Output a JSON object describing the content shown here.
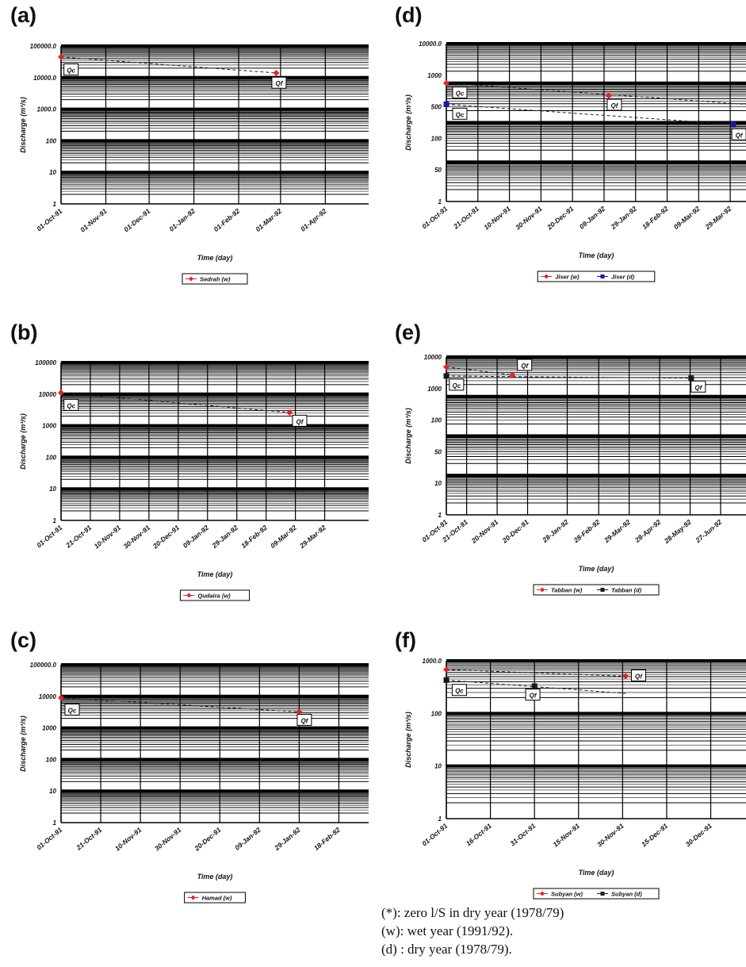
{
  "chart_data": [
    {
      "panel": "(a)",
      "type": "line",
      "scale": "log",
      "xlabel": "Time (day)",
      "ylabel": "Discharge (m³/s)",
      "ylim": [
        1,
        100000
      ],
      "ytick_labels": [
        "1",
        "10",
        "100",
        "1000.0",
        "10000.0",
        "100000.0"
      ],
      "x_dates": [
        "01-Oct-91",
        "01-Nov-91",
        "01-Dec-91",
        "01-Jan-92",
        "01-Feb-92",
        "01-Mar-92",
        "01-Apr-92"
      ],
      "x_range": [
        "01-Oct-91",
        "01-May-92"
      ],
      "series": [
        {
          "name": "Sedrah (w)",
          "color": "#e8202a",
          "marker": "diamond",
          "x": [
            "01-Oct-91",
            "27-Feb-92"
          ],
          "y": [
            45000,
            14000
          ]
        }
      ],
      "trend": [
        {
          "x": [
            "01-Oct-91",
            "27-Feb-92"
          ],
          "y": [
            45000,
            14000
          ]
        }
      ],
      "annotations": [
        {
          "text": "Qc",
          "x": "03-Oct-91",
          "y": 17000
        },
        {
          "text": "Qf",
          "x": "24-Feb-92",
          "y": 6500
        }
      ]
    },
    {
      "panel": "(b)",
      "type": "line",
      "scale": "log",
      "xlabel": "Time (day)",
      "ylabel": "Discharge (m³/s)",
      "ylim": [
        1,
        100000
      ],
      "ytick_labels": [
        "1",
        "10",
        "100",
        "1000",
        "10000",
        "100000"
      ],
      "x_dates": [
        "01-Oct-91",
        "21-Oct-91",
        "10-Nov-91",
        "30-Nov-91",
        "20-Dec-91",
        "09-Jan-92",
        "29-Jan-92",
        "18-Feb-92",
        "09-Mar-92",
        "29-Mar-92"
      ],
      "x_range": [
        "01-Oct-91",
        "28-Apr-92"
      ],
      "series": [
        {
          "name": "Qudaira (w)",
          "color": "#e8202a",
          "marker": "diamond",
          "x": [
            "01-Oct-91",
            "05-Mar-92"
          ],
          "y": [
            11000,
            2600
          ]
        }
      ],
      "trend": [
        {
          "x": [
            "01-Oct-91",
            "05-Mar-92"
          ],
          "y": [
            11000,
            2600
          ]
        }
      ],
      "annotations": [
        {
          "text": "Qc",
          "x": "03-Oct-91",
          "y": 4300
        },
        {
          "text": "Qf",
          "x": "07-Mar-92",
          "y": 1350
        }
      ]
    },
    {
      "panel": "(c)",
      "type": "line",
      "scale": "log",
      "xlabel": "Time (day)",
      "ylabel": "Discharge (m³/s)",
      "ylim": [
        1,
        100000
      ],
      "ytick_labels": [
        "1",
        "10",
        "100",
        "1000",
        "10000",
        "100000.0"
      ],
      "x_dates": [
        "01-Oct-91",
        "21-Oct-91",
        "10-Nov-91",
        "30-Nov-91",
        "20-Dec-91",
        "09-Jan-92",
        "29-Jan-92",
        "18-Feb-92"
      ],
      "x_range": [
        "01-Oct-91",
        "04-Mar-92"
      ],
      "series": [
        {
          "name": "Hamad (w)",
          "color": "#e8202a",
          "marker": "diamond",
          "x": [
            "01-Oct-91",
            "29-Jan-92"
          ],
          "y": [
            9000,
            3200
          ]
        }
      ],
      "trend": [
        {
          "x": [
            "01-Oct-91",
            "29-Jan-92"
          ],
          "y": [
            9000,
            3200
          ]
        }
      ],
      "annotations": [
        {
          "text": "Qc",
          "x": "03-Oct-91",
          "y": 3600
        },
        {
          "text": "Qf",
          "x": "28-Jan-92",
          "y": 1700
        }
      ]
    },
    {
      "panel": "(d)",
      "type": "line",
      "scale": "log",
      "xlabel": "Time (day)",
      "ylabel": "Discharge (m³/s)",
      "ylim": [
        1,
        10000
      ],
      "ytick_labels": [
        "1",
        "50",
        "100",
        "500",
        "1000",
        "10000.0"
      ],
      "x_dates": [
        "01-Oct-91",
        "21-Oct-91",
        "10-Nov-91",
        "30-Nov-91",
        "20-Dec-91",
        "09-Jan-92",
        "29-Jan-92",
        "18-Feb-92",
        "09-Mar-92",
        "29-Mar-92"
      ],
      "x_range": [
        "01-Oct-91",
        "08-Apr-92"
      ],
      "series": [
        {
          "name": "Jiser (w)",
          "color": "#e8202a",
          "marker": "diamond",
          "x": [
            "01-Oct-91",
            "12-Jan-92"
          ],
          "y": [
            1000,
            480
          ]
        },
        {
          "name": "Jiser (d)",
          "color": "#1a1aa8",
          "marker": "square",
          "x": [
            "01-Oct-91",
            "31-Mar-92"
          ],
          "y": [
            290,
            90
          ]
        }
      ],
      "trend": [
        {
          "x": [
            "01-Oct-91",
            "08-Apr-92"
          ],
          "y": [
            1000,
            290
          ]
        },
        {
          "x": [
            "01-Oct-91",
            "31-Mar-92"
          ],
          "y": [
            290,
            90
          ]
        }
      ],
      "annotations": [
        {
          "text": "Qc",
          "x": "05-Oct-91",
          "y": 550
        },
        {
          "text": "Qc",
          "x": "05-Oct-91",
          "y": 160
        },
        {
          "text": "Qf",
          "x": "11-Jan-92",
          "y": 270
        },
        {
          "text": "Qf",
          "x": "30-Mar-92",
          "y": 48
        }
      ]
    },
    {
      "panel": "(e)",
      "type": "line",
      "scale": "log",
      "xlabel": "Time (day)",
      "ylabel": "Discharge (m³/s)",
      "ylim": [
        1,
        10000
      ],
      "ytick_labels": [
        "1",
        "10",
        "50",
        "100",
        "1000",
        "10000"
      ],
      "x_dates": [
        "01-Oct-91",
        "21-Oct-91",
        "20-Nov-91",
        "20-Dec-91",
        "28-Jan-92",
        "28-Feb-92",
        "29-Mar-92",
        "28-Apr-92",
        "28-May-92",
        "27-Jun-92"
      ],
      "x_range": [
        "01-Oct-91",
        "22-Jul-92"
      ],
      "series": [
        {
          "name": "Tabban (w)",
          "color": "#e8202a",
          "marker": "diamond",
          "x": [
            "01-Oct-91",
            "05-Dec-91"
          ],
          "y": [
            5600,
            3500
          ]
        },
        {
          "name": "Tabban (d)",
          "color": "#1a1a1a",
          "marker": "square",
          "x": [
            "01-Oct-91",
            "29-May-92"
          ],
          "y": [
            3300,
            2900
          ]
        }
      ],
      "trend": [
        {
          "x": [
            "01-Oct-91",
            "05-Dec-91"
          ],
          "y": [
            5600,
            3500
          ]
        },
        {
          "x": [
            "01-Oct-91",
            "29-May-92"
          ],
          "y": [
            3300,
            2900
          ]
        }
      ],
      "annotations": [
        {
          "text": "Qc",
          "x": "04-Oct-91",
          "y": 1900
        },
        {
          "text": "Qf",
          "x": "10-Dec-91",
          "y": 6000
        },
        {
          "text": "Qf",
          "x": "29-May-92",
          "y": 1700
        }
      ]
    },
    {
      "panel": "(f)",
      "type": "line",
      "scale": "log",
      "xlabel": "Time (day)",
      "ylabel": "Discharge (m³/s)",
      "ylim": [
        1,
        1000
      ],
      "ytick_labels": [
        "1",
        "10",
        "100",
        "1000.0"
      ],
      "x_dates": [
        "01-Oct-91",
        "16-Oct-91",
        "31-Oct-91",
        "15-Nov-91",
        "30-Nov-91",
        "15-Dec-91",
        "30-Dec-91"
      ],
      "x_range": [
        "01-Oct-91",
        "11-Jan-92"
      ],
      "series": [
        {
          "name": "Subyan (w)",
          "color": "#e8202a",
          "marker": "diamond",
          "x": [
            "01-Oct-91",
            "01-Dec-91"
          ],
          "y": [
            680,
            510
          ]
        },
        {
          "name": "Subyan (d)",
          "color": "#1a1a1a",
          "marker": "square",
          "x": [
            "01-Oct-91",
            "31-Oct-91"
          ],
          "y": [
            430,
            330
          ]
        }
      ],
      "trend": [
        {
          "x": [
            "01-Oct-91",
            "01-Dec-91"
          ],
          "y": [
            680,
            510
          ]
        },
        {
          "x": [
            "01-Oct-91",
            "01-Dec-91"
          ],
          "y": [
            430,
            240
          ]
        }
      ],
      "annotations": [
        {
          "text": "Qc",
          "x": "03-Oct-91",
          "y": 270
        },
        {
          "text": "Qf",
          "x": "03-Dec-91",
          "y": 510
        },
        {
          "text": "Qf",
          "x": "28-Oct-91",
          "y": 220
        }
      ]
    }
  ],
  "panel_labels": [
    "(a)",
    "(b)",
    "(c)",
    "(d)",
    "(e)",
    "(f)"
  ],
  "notes": [
    "(*): zero l/S in dry year (1978/79)",
    "(w): wet year (1991/92).",
    "(d) : dry year (1978/79)."
  ]
}
